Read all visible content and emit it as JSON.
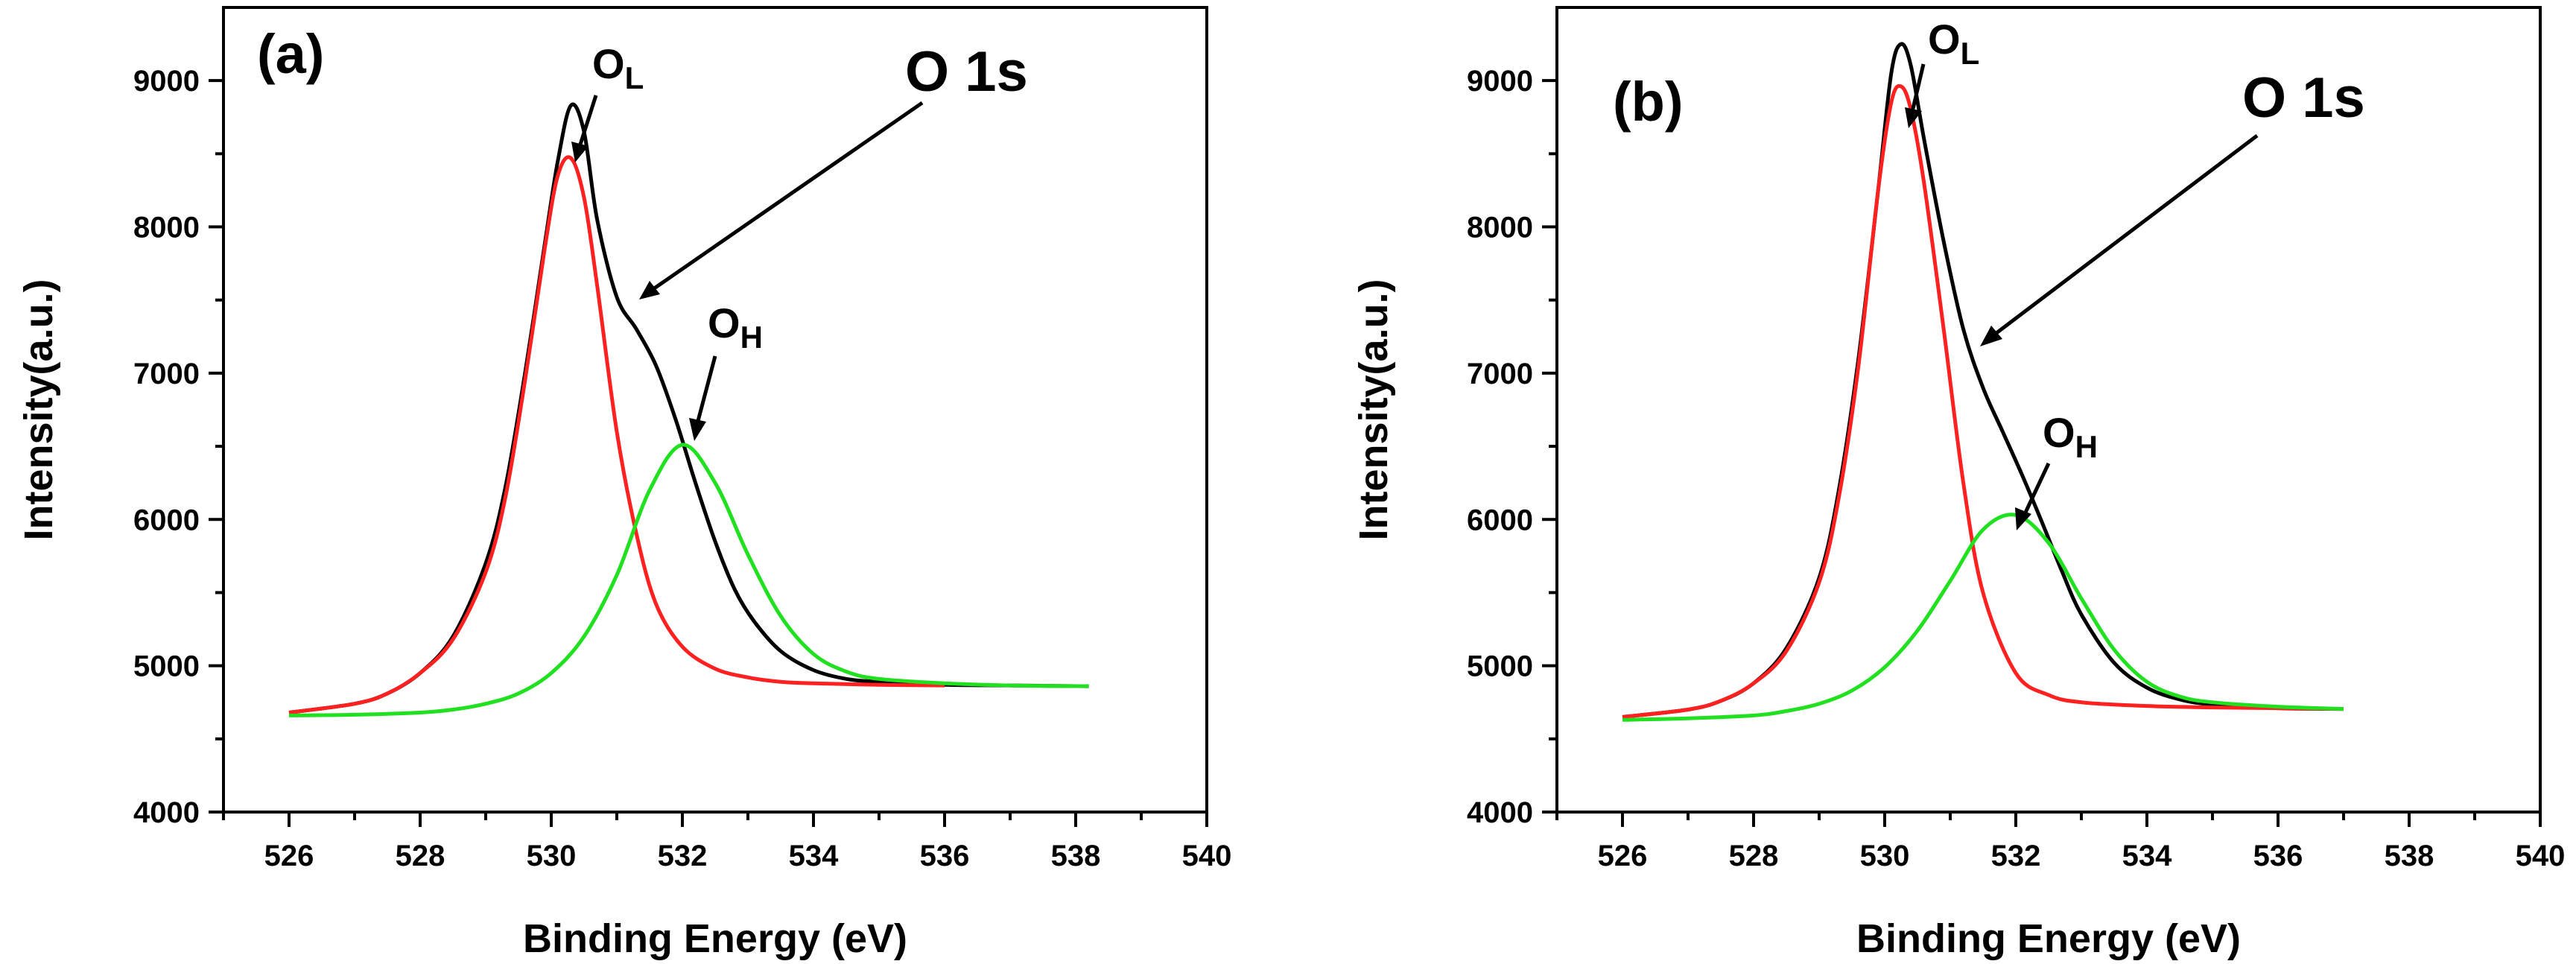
{
  "chart_data": [
    {
      "type": "line",
      "panel_label": "(a)",
      "xlabel": "Binding Energy (eV)",
      "ylabel": "Intensity(a.u.)",
      "xlim": [
        525,
        540
      ],
      "ylim": [
        4000,
        9500
      ],
      "xticks": [
        526,
        528,
        530,
        532,
        534,
        536,
        538,
        540
      ],
      "yticks": [
        4000,
        5000,
        6000,
        7000,
        8000,
        9000
      ],
      "grid": false,
      "series": [
        {
          "name": "O 1s envelope",
          "color": "#000000",
          "x": [
            526.0,
            527.0,
            527.5,
            528.0,
            528.5,
            529.0,
            529.3,
            529.6,
            529.9,
            530.1,
            530.3,
            530.5,
            530.7,
            531.0,
            531.3,
            531.6,
            531.9,
            532.2,
            532.5,
            532.8,
            533.1,
            533.5,
            534.0,
            534.5,
            535.0,
            536.0,
            537.0,
            538.2
          ],
          "y": [
            4680,
            4740,
            4810,
            4950,
            5200,
            5700,
            6220,
            7000,
            7880,
            8450,
            8830,
            8650,
            8050,
            7520,
            7300,
            7050,
            6680,
            6250,
            5850,
            5520,
            5300,
            5100,
            4970,
            4910,
            4890,
            4870,
            4865,
            4860
          ]
        },
        {
          "name": "O_L component",
          "color": "#ff2020",
          "x": [
            526.0,
            527.0,
            527.5,
            528.0,
            528.5,
            529.0,
            529.3,
            529.6,
            529.9,
            530.1,
            530.3,
            530.5,
            530.7,
            531.0,
            531.3,
            531.6,
            532.0,
            532.5,
            533.0,
            533.5,
            534.0,
            535.0,
            536.0
          ],
          "y": [
            4680,
            4740,
            4810,
            4950,
            5180,
            5640,
            6150,
            6950,
            7850,
            8350,
            8470,
            8200,
            7600,
            6600,
            5900,
            5420,
            5130,
            4980,
            4920,
            4890,
            4880,
            4870,
            4865
          ]
        },
        {
          "name": "O_H component",
          "color": "#20e020",
          "x": [
            526.0,
            527.0,
            528.0,
            528.5,
            529.0,
            529.5,
            530.0,
            530.5,
            531.0,
            531.5,
            532.0,
            532.5,
            533.0,
            533.5,
            534.0,
            534.5,
            535.0,
            536.0,
            537.0,
            538.2
          ],
          "y": [
            4660,
            4665,
            4680,
            4700,
            4740,
            4810,
            4950,
            5200,
            5620,
            6200,
            6510,
            6250,
            5760,
            5340,
            5080,
            4960,
            4910,
            4880,
            4865,
            4860
          ]
        }
      ],
      "annotations": [
        {
          "text": "O",
          "sub": "L"
        },
        {
          "text": "O 1s"
        },
        {
          "text": "O",
          "sub": "H"
        }
      ]
    },
    {
      "type": "line",
      "panel_label": "(b)",
      "xlabel": "Binding Energy (eV)",
      "ylabel": "Intensity(a.u.)",
      "xlim": [
        525,
        540
      ],
      "ylim": [
        4000,
        9500
      ],
      "xticks": [
        526,
        528,
        530,
        532,
        534,
        536,
        538,
        540
      ],
      "yticks": [
        4000,
        5000,
        6000,
        7000,
        8000,
        9000
      ],
      "grid": false,
      "series": [
        {
          "name": "O 1s envelope",
          "color": "#000000",
          "x": [
            526.0,
            527.0,
            527.5,
            528.0,
            528.5,
            529.0,
            529.3,
            529.6,
            529.9,
            530.1,
            530.25,
            530.4,
            530.6,
            530.9,
            531.2,
            531.5,
            531.8,
            532.1,
            532.4,
            532.7,
            533.0,
            533.5,
            534.0,
            534.5,
            535.0,
            536.0,
            537.0
          ],
          "y": [
            4650,
            4700,
            4760,
            4880,
            5120,
            5600,
            6200,
            7100,
            8250,
            9050,
            9250,
            9100,
            8600,
            7900,
            7300,
            6900,
            6600,
            6300,
            5980,
            5650,
            5350,
            5020,
            4850,
            4770,
            4735,
            4710,
            4705
          ]
        },
        {
          "name": "O_L component",
          "color": "#ff2020",
          "x": [
            526.0,
            527.0,
            527.5,
            528.0,
            528.5,
            529.0,
            529.3,
            529.6,
            529.9,
            530.1,
            530.25,
            530.4,
            530.6,
            530.9,
            531.2,
            531.5,
            532.0,
            532.5,
            533.0,
            534.0,
            535.0,
            536.0,
            537.0
          ],
          "y": [
            4650,
            4700,
            4760,
            4880,
            5100,
            5570,
            6150,
            7050,
            8250,
            8850,
            8960,
            8800,
            8300,
            7300,
            6250,
            5500,
            4950,
            4800,
            4750,
            4725,
            4715,
            4710,
            4705
          ]
        },
        {
          "name": "O_H component",
          "color": "#20e020",
          "x": [
            526.0,
            527.0,
            528.0,
            528.5,
            529.0,
            529.5,
            530.0,
            530.5,
            531.0,
            531.5,
            532.0,
            532.5,
            533.0,
            533.5,
            534.0,
            534.5,
            535.0,
            536.0,
            537.0
          ],
          "y": [
            4630,
            4640,
            4660,
            4690,
            4740,
            4830,
            4990,
            5240,
            5580,
            5930,
            6030,
            5840,
            5460,
            5110,
            4890,
            4790,
            4750,
            4720,
            4705
          ]
        }
      ],
      "annotations": [
        {
          "text": "O",
          "sub": "L"
        },
        {
          "text": "O 1s"
        },
        {
          "text": "O",
          "sub": "H"
        }
      ]
    }
  ]
}
